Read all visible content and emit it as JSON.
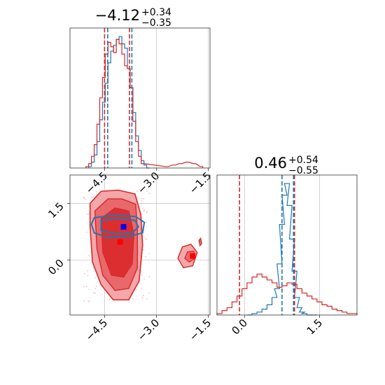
{
  "colors": {
    "red": "#d62728",
    "blue": "#1f77b4",
    "blue_marker": "#0000ff",
    "red_marker": "#ff0000"
  },
  "chart_data": [
    {
      "type": "line",
      "subtype": "histogram (step)",
      "panel": "top-left (marginal of x)",
      "title_value": "−4.12",
      "title_plus": "+0.34",
      "title_minus": "−0.35",
      "x_range": [
        -5.5,
        -1.45
      ],
      "x_ticks": [
        -4.5,
        -3.0,
        -1.5
      ],
      "x_tick_labels": [
        "−4.5",
        "−3.0",
        "−1.5"
      ],
      "grid": true,
      "quantile_lines": {
        "red": [
          -4.5,
          -3.78
        ],
        "blue": [
          -4.41,
          -3.71
        ]
      },
      "series": [
        {
          "name": "",
          "color": "#1f77b4",
          "x": [
            -4.92,
            -4.84,
            -4.76,
            -4.68,
            -4.6,
            -4.52,
            -4.44,
            -4.36,
            -4.28,
            -4.2,
            -4.12,
            -4.04,
            -3.96,
            -3.88,
            -3.8,
            -3.72,
            -3.64,
            -3.56,
            -3.48,
            -3.4,
            -3.32,
            -3.24
          ],
          "y": [
            0.01,
            0.04,
            0.09,
            0.18,
            0.33,
            0.45,
            0.58,
            0.72,
            0.8,
            0.84,
            0.88,
            0.9,
            0.85,
            0.82,
            0.68,
            0.55,
            0.38,
            0.22,
            0.12,
            0.05,
            0.02,
            0.0
          ]
        },
        {
          "name": "",
          "color": "#d62728",
          "x": [
            -5.0,
            -4.92,
            -4.84,
            -4.76,
            -4.68,
            -4.6,
            -4.52,
            -4.44,
            -4.36,
            -4.28,
            -4.2,
            -4.12,
            -4.04,
            -3.96,
            -3.88,
            -3.8,
            -3.72,
            -3.64,
            -3.56,
            -3.48,
            -3.4,
            -2.7,
            -2.5,
            -2.3,
            -2.1,
            -1.9,
            -1.7
          ],
          "y": [
            0.01,
            0.03,
            0.08,
            0.16,
            0.3,
            0.48,
            0.62,
            0.78,
            0.86,
            0.83,
            0.79,
            0.88,
            0.85,
            0.78,
            0.7,
            0.68,
            0.55,
            0.32,
            0.18,
            0.08,
            0.03,
            0.01,
            0.02,
            0.03,
            0.04,
            0.03,
            0.01
          ]
        }
      ]
    },
    {
      "type": "scatter",
      "subtype": "2D density contours",
      "panel": "bottom-left (joint)",
      "x_range": [
        -5.5,
        -1.45
      ],
      "y_range": [
        -1.45,
        2.25
      ],
      "x_ticks": [
        -4.5,
        -3.0,
        -1.5
      ],
      "x_tick_labels": [
        "−4.5",
        "−3.0",
        "−1.5"
      ],
      "y_ticks": [
        0.0,
        1.5
      ],
      "y_tick_labels": [
        "0.0",
        "1.5"
      ],
      "grid": true,
      "markers": [
        {
          "color": "#0000ff",
          "x": -3.95,
          "y": 0.88
        },
        {
          "color": "#ff0000",
          "x": -4.05,
          "y": 0.48
        },
        {
          "color": "#ff0000",
          "x": -1.95,
          "y": 0.11
        }
      ],
      "red_contours": {
        "outer": [
          [
            -4.92,
            1.5
          ],
          [
            -4.6,
            1.82
          ],
          [
            -4.1,
            1.85
          ],
          [
            -3.62,
            1.75
          ],
          [
            -3.45,
            1.2
          ],
          [
            -3.4,
            0.4
          ],
          [
            -3.5,
            -0.55
          ],
          [
            -3.8,
            -1.05
          ],
          [
            -4.25,
            -1.05
          ],
          [
            -4.6,
            -0.65
          ],
          [
            -4.85,
            -0.05
          ],
          [
            -4.92,
            0.9
          ]
        ],
        "middle": [
          [
            -4.78,
            1.3
          ],
          [
            -4.4,
            1.62
          ],
          [
            -4.0,
            1.62
          ],
          [
            -3.6,
            1.48
          ],
          [
            -3.55,
            0.8
          ],
          [
            -3.55,
            -0.2
          ],
          [
            -3.8,
            -0.75
          ],
          [
            -4.2,
            -0.8
          ],
          [
            -4.55,
            -0.4
          ],
          [
            -4.72,
            0.3
          ]
        ],
        "inner": [
          [
            -4.6,
            1.1
          ],
          [
            -4.2,
            1.38
          ],
          [
            -3.8,
            1.3
          ],
          [
            -3.65,
            0.7
          ],
          [
            -3.7,
            -0.1
          ],
          [
            -3.95,
            -0.45
          ],
          [
            -4.3,
            -0.4
          ],
          [
            -4.55,
            0.2
          ]
        ],
        "island_outer": [
          [
            -2.25,
            0.35
          ],
          [
            -2.0,
            0.42
          ],
          [
            -1.82,
            0.2
          ],
          [
            -1.95,
            -0.15
          ],
          [
            -2.22,
            -0.2
          ],
          [
            -2.38,
            0.05
          ]
        ],
        "island_inner": [
          [
            -2.1,
            0.22
          ],
          [
            -1.92,
            0.24
          ],
          [
            -1.88,
            0.05
          ],
          [
            -2.05,
            -0.05
          ],
          [
            -2.18,
            0.05
          ]
        ],
        "island_small": [
          [
            -1.77,
            0.52
          ],
          [
            -1.72,
            0.58
          ],
          [
            -1.69,
            0.44
          ],
          [
            -1.74,
            0.38
          ]
        ]
      },
      "blue_contours": {
        "outer": [
          [
            -4.8,
            1.12
          ],
          [
            -4.2,
            1.2
          ],
          [
            -3.6,
            1.15
          ],
          [
            -3.35,
            1.0
          ],
          [
            -3.4,
            0.72
          ],
          [
            -3.8,
            0.62
          ],
          [
            -4.4,
            0.6
          ],
          [
            -4.8,
            0.72
          ],
          [
            -4.88,
            0.95
          ]
        ],
        "inner": [
          [
            -4.6,
            1.05
          ],
          [
            -4.1,
            1.1
          ],
          [
            -3.62,
            1.05
          ],
          [
            -3.52,
            0.88
          ],
          [
            -3.7,
            0.72
          ],
          [
            -4.2,
            0.7
          ],
          [
            -4.6,
            0.78
          ]
        ]
      }
    },
    {
      "type": "line",
      "subtype": "histogram (step)",
      "panel": "bottom-right (marginal of y)",
      "title_value": "0.46",
      "title_plus": "+0.54",
      "title_minus": "−0.55",
      "x_range": [
        -0.55,
        2.25
      ],
      "x_ticks": [
        0.0,
        1.5
      ],
      "x_tick_labels": [
        "0.0",
        "1.5"
      ],
      "grid": true,
      "quantile_lines": {
        "red": [
          -0.1,
          1.0
        ],
        "blue": [
          0.75,
          0.98
        ]
      },
      "series": [
        {
          "name": "",
          "color": "#1f77b4",
          "x": [
            0.1,
            0.2,
            0.3,
            0.4,
            0.5,
            0.6,
            0.65,
            0.7,
            0.75,
            0.8,
            0.85,
            0.9,
            0.95,
            1.0,
            1.05,
            1.1,
            1.15,
            1.2,
            1.3,
            1.4
          ],
          "y": [
            0.0,
            0.01,
            0.02,
            0.04,
            0.07,
            0.12,
            0.18,
            0.35,
            0.62,
            0.82,
            0.9,
            0.75,
            0.52,
            0.3,
            0.12,
            0.05,
            0.02,
            0.01,
            0.0,
            0.0
          ]
        },
        {
          "name": "",
          "color": "#d62728",
          "x": [
            -0.5,
            -0.4,
            -0.3,
            -0.2,
            -0.1,
            0.0,
            0.1,
            0.2,
            0.3,
            0.4,
            0.5,
            0.6,
            0.7,
            0.8,
            0.9,
            1.0,
            1.1,
            1.2,
            1.3,
            1.4,
            1.5,
            1.6,
            1.7,
            1.8,
            1.9,
            2.0,
            2.1,
            2.2
          ],
          "y": [
            0.01,
            0.03,
            0.05,
            0.09,
            0.13,
            0.18,
            0.22,
            0.26,
            0.28,
            0.26,
            0.24,
            0.22,
            0.19,
            0.2,
            0.22,
            0.21,
            0.18,
            0.15,
            0.13,
            0.11,
            0.09,
            0.07,
            0.06,
            0.04,
            0.03,
            0.02,
            0.01,
            0.01
          ]
        }
      ]
    }
  ]
}
